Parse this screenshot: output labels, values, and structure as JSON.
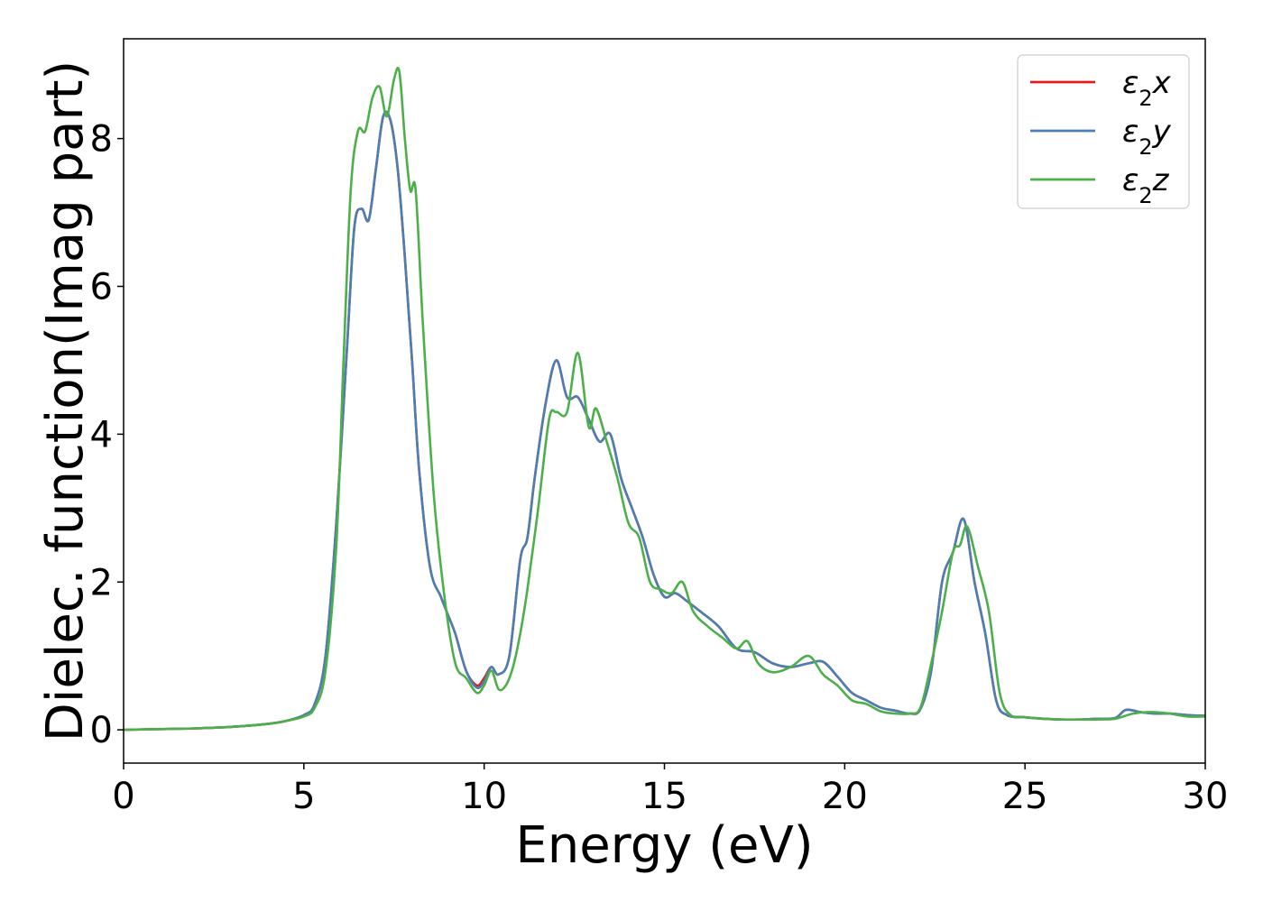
{
  "chart_data": {
    "type": "line",
    "xlabel": "Energy (eV)",
    "ylabel": "Dielec. function(Imag part)",
    "xlim": [
      0,
      30
    ],
    "ylim": [
      -0.45,
      9.35
    ],
    "xticks": [
      0,
      5,
      10,
      15,
      20,
      25,
      30
    ],
    "yticks": [
      0,
      2,
      4,
      6,
      8
    ],
    "grid": false,
    "legend_position": "top-right",
    "series": [
      {
        "name": "ε₂x",
        "legend_base": "ε",
        "legend_sub": "2",
        "legend_suffix": "x",
        "color": "#e41a1c",
        "x": [
          0,
          1,
          2,
          3,
          4,
          4.5,
          5,
          5.3,
          5.6,
          5.9,
          6.2,
          6.4,
          6.6,
          6.8,
          7.0,
          7.2,
          7.4,
          7.6,
          7.8,
          8.0,
          8.2,
          8.5,
          8.8,
          9.0,
          9.2,
          9.5,
          9.8,
          10.0,
          10.2,
          10.4,
          10.7,
          11.0,
          11.2,
          11.4,
          11.7,
          12.0,
          12.3,
          12.6,
          12.9,
          13.2,
          13.5,
          13.8,
          14.1,
          14.4,
          14.7,
          15.0,
          15.3,
          15.6,
          16.0,
          16.5,
          17.0,
          17.5,
          18.0,
          18.5,
          19.0,
          19.4,
          19.8,
          20.2,
          20.6,
          21.0,
          21.4,
          21.8,
          22.1,
          22.4,
          22.7,
          23.0,
          23.3,
          23.6,
          23.9,
          24.2,
          24.5,
          25.0,
          25.5,
          26.0,
          26.5,
          27.0,
          27.5,
          27.8,
          28.2,
          28.6,
          29.0,
          29.5,
          30.0
        ],
        "y": [
          0.0,
          0.01,
          0.02,
          0.04,
          0.08,
          0.12,
          0.2,
          0.35,
          1.0,
          2.8,
          5.2,
          6.8,
          7.05,
          6.9,
          7.6,
          8.3,
          8.25,
          7.6,
          6.4,
          5.0,
          3.5,
          2.2,
          1.8,
          1.55,
          1.3,
          0.8,
          0.6,
          0.7,
          0.85,
          0.75,
          1.0,
          2.3,
          2.6,
          3.4,
          4.4,
          5.0,
          4.5,
          4.5,
          4.2,
          3.9,
          4.0,
          3.4,
          3.0,
          2.6,
          2.1,
          1.8,
          1.85,
          1.75,
          1.6,
          1.4,
          1.1,
          1.05,
          0.9,
          0.85,
          0.9,
          0.92,
          0.72,
          0.5,
          0.4,
          0.3,
          0.26,
          0.22,
          0.28,
          0.8,
          2.0,
          2.4,
          2.85,
          2.0,
          1.3,
          0.4,
          0.2,
          0.17,
          0.15,
          0.14,
          0.14,
          0.15,
          0.16,
          0.27,
          0.24,
          0.22,
          0.22,
          0.2,
          0.19
        ]
      },
      {
        "name": "ε₂y",
        "legend_base": "ε",
        "legend_sub": "2",
        "legend_suffix": "y",
        "color": "#4b7fb3",
        "x": [
          0,
          1,
          2,
          3,
          4,
          4.5,
          5,
          5.3,
          5.6,
          5.9,
          6.2,
          6.4,
          6.6,
          6.8,
          7.0,
          7.2,
          7.4,
          7.6,
          7.8,
          8.0,
          8.2,
          8.5,
          8.8,
          9.0,
          9.2,
          9.5,
          9.8,
          10.0,
          10.2,
          10.4,
          10.7,
          11.0,
          11.2,
          11.4,
          11.7,
          12.0,
          12.3,
          12.6,
          12.9,
          13.2,
          13.5,
          13.8,
          14.1,
          14.4,
          14.7,
          15.0,
          15.3,
          15.6,
          16.0,
          16.5,
          17.0,
          17.5,
          18.0,
          18.5,
          19.0,
          19.4,
          19.8,
          20.2,
          20.6,
          21.0,
          21.4,
          21.8,
          22.1,
          22.4,
          22.7,
          23.0,
          23.3,
          23.6,
          23.9,
          24.2,
          24.5,
          25.0,
          25.5,
          26.0,
          26.5,
          27.0,
          27.5,
          27.8,
          28.2,
          28.6,
          29.0,
          29.5,
          30.0
        ],
        "y": [
          0.0,
          0.01,
          0.02,
          0.04,
          0.08,
          0.12,
          0.2,
          0.35,
          1.0,
          2.8,
          5.2,
          6.8,
          7.05,
          6.9,
          7.6,
          8.3,
          8.25,
          7.6,
          6.4,
          5.0,
          3.5,
          2.2,
          1.8,
          1.55,
          1.3,
          0.8,
          0.57,
          0.66,
          0.85,
          0.75,
          1.0,
          2.3,
          2.6,
          3.4,
          4.4,
          5.0,
          4.5,
          4.5,
          4.2,
          3.9,
          4.0,
          3.4,
          3.0,
          2.6,
          2.1,
          1.8,
          1.85,
          1.75,
          1.6,
          1.4,
          1.1,
          1.05,
          0.9,
          0.85,
          0.9,
          0.92,
          0.72,
          0.5,
          0.4,
          0.3,
          0.26,
          0.22,
          0.28,
          0.8,
          2.0,
          2.4,
          2.85,
          2.0,
          1.3,
          0.4,
          0.2,
          0.17,
          0.15,
          0.14,
          0.14,
          0.15,
          0.16,
          0.27,
          0.24,
          0.22,
          0.22,
          0.2,
          0.19
        ]
      },
      {
        "name": "ε₂z",
        "legend_base": "ε",
        "legend_sub": "2",
        "legend_suffix": "z",
        "color": "#4daf4a",
        "x": [
          0,
          1,
          2,
          3,
          4,
          4.5,
          5,
          5.3,
          5.6,
          5.9,
          6.1,
          6.3,
          6.5,
          6.7,
          6.9,
          7.1,
          7.3,
          7.5,
          7.65,
          7.8,
          7.95,
          8.1,
          8.3,
          8.6,
          8.9,
          9.2,
          9.5,
          9.8,
          10.0,
          10.2,
          10.4,
          10.6,
          10.8,
          11.0,
          11.2,
          11.5,
          11.8,
          12.0,
          12.3,
          12.6,
          12.9,
          13.1,
          13.4,
          13.7,
          14.0,
          14.3,
          14.6,
          14.9,
          15.2,
          15.5,
          15.8,
          16.2,
          16.6,
          17.0,
          17.3,
          17.6,
          18.0,
          18.5,
          19.0,
          19.4,
          19.8,
          20.2,
          20.6,
          21.0,
          21.4,
          21.8,
          22.1,
          22.4,
          22.7,
          23.0,
          23.2,
          23.4,
          23.7,
          24.0,
          24.3,
          24.6,
          25.0,
          25.5,
          26.0,
          26.5,
          27.0,
          27.5,
          28.0,
          28.5,
          29.0,
          29.5,
          30.0
        ],
        "y": [
          0.0,
          0.01,
          0.02,
          0.04,
          0.08,
          0.12,
          0.18,
          0.3,
          0.8,
          2.5,
          5.0,
          7.3,
          8.1,
          8.1,
          8.55,
          8.7,
          8.3,
          8.8,
          8.9,
          8.0,
          7.3,
          7.3,
          5.5,
          3.2,
          1.8,
          0.9,
          0.7,
          0.5,
          0.6,
          0.8,
          0.55,
          0.6,
          0.85,
          1.3,
          1.9,
          3.0,
          4.2,
          4.3,
          4.3,
          5.1,
          4.1,
          4.35,
          3.9,
          3.4,
          2.8,
          2.6,
          2.0,
          1.9,
          1.85,
          2.0,
          1.6,
          1.4,
          1.25,
          1.1,
          1.2,
          0.9,
          0.78,
          0.85,
          1.0,
          0.75,
          0.6,
          0.4,
          0.35,
          0.25,
          0.22,
          0.22,
          0.3,
          0.9,
          1.6,
          2.4,
          2.5,
          2.75,
          2.2,
          1.6,
          0.5,
          0.2,
          0.17,
          0.15,
          0.14,
          0.14,
          0.14,
          0.15,
          0.22,
          0.24,
          0.22,
          0.18,
          0.18
        ]
      }
    ]
  }
}
